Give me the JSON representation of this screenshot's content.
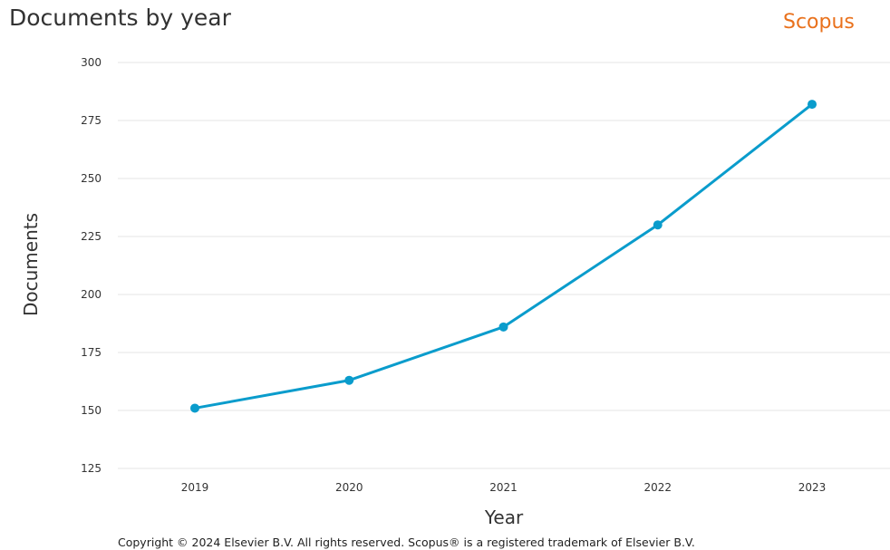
{
  "header": {
    "title": "Documents by year",
    "brand": "Scopus"
  },
  "footer": {
    "copyright": "Copyright © 2024 Elsevier B.V. All rights reserved. Scopus® is a registered trademark of Elsevier B.V."
  },
  "colors": {
    "line": "#0a9ccc",
    "brand": "#e9711c",
    "grid": "#e6e6e6"
  },
  "chart_data": {
    "type": "line",
    "title": "Documents by year",
    "xlabel": "Year",
    "ylabel": "Documents",
    "x": [
      "2019",
      "2020",
      "2021",
      "2022",
      "2023"
    ],
    "series": [
      {
        "values": [
          151,
          163,
          186,
          230,
          282
        ]
      }
    ],
    "ylim": [
      125,
      300
    ],
    "yticks": [
      125,
      150,
      175,
      200,
      225,
      250,
      275,
      300
    ],
    "grid": true,
    "legend": "none"
  }
}
